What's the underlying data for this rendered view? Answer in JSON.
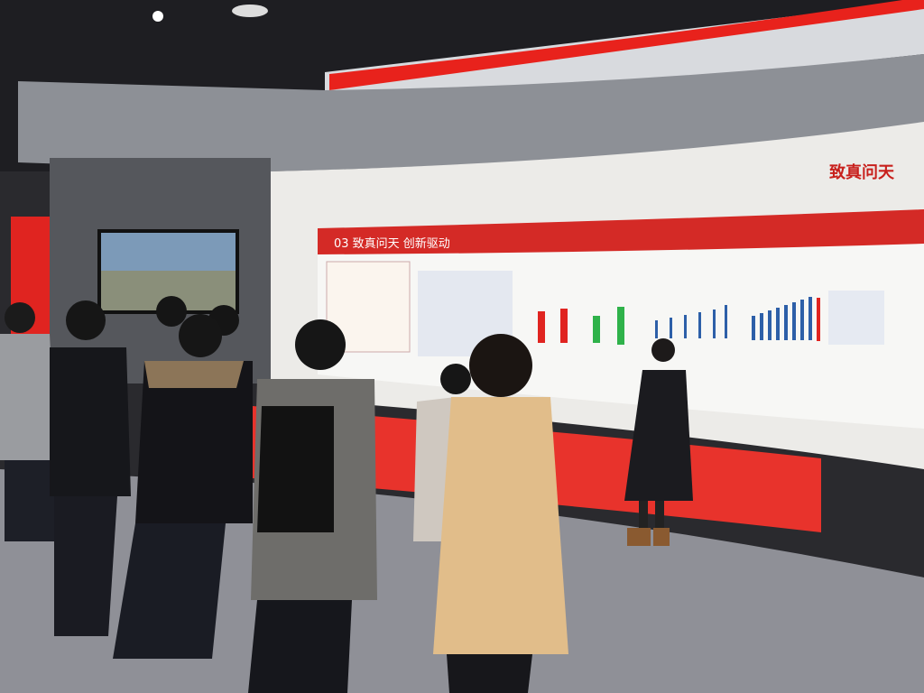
{
  "wall_title": "致真问天",
  "board": {
    "heading": "03 致真问天 创新驱动"
  }
}
